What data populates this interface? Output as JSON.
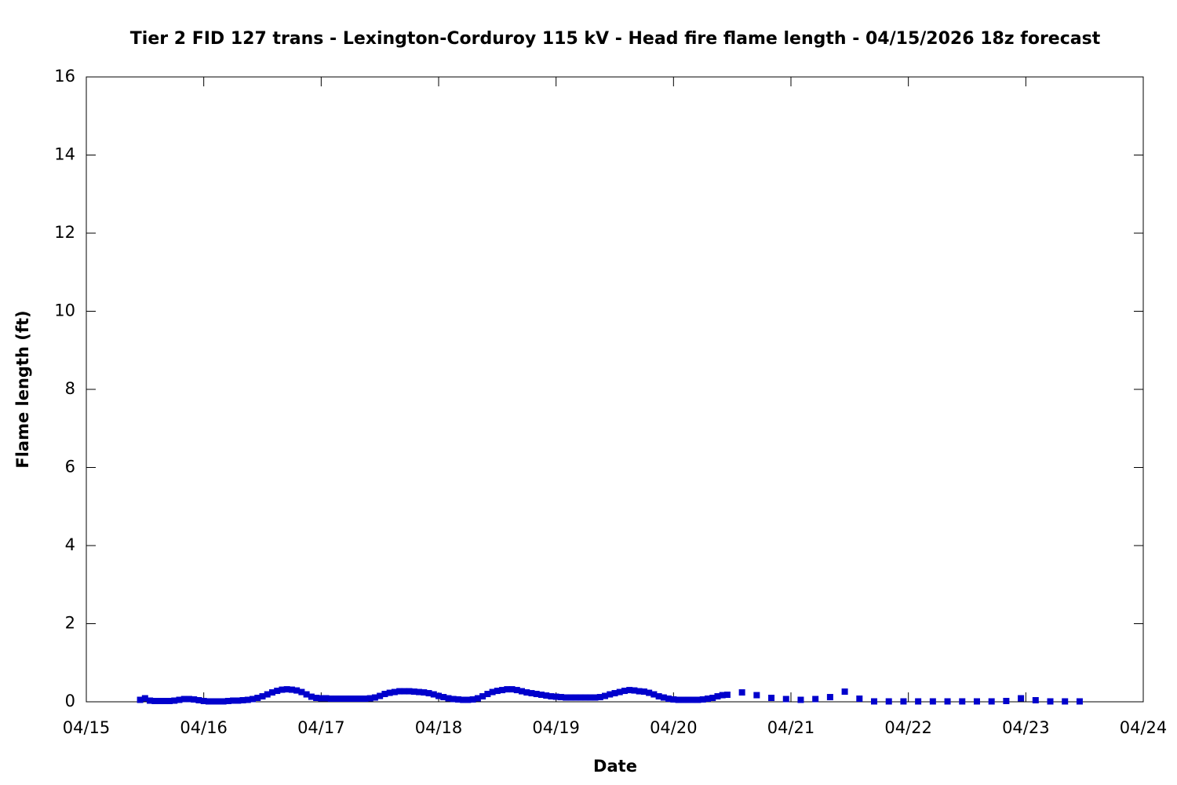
{
  "chart_data": {
    "type": "scatter",
    "title": "Tier 2 FID 127 trans - Lexington-Corduroy 115 kV - Head fire flame length - 04/15/2026 18z forecast",
    "xlabel": "Date",
    "ylabel": "Flame length (ft)",
    "xlim": [
      0,
      216
    ],
    "ylim": [
      0,
      16
    ],
    "xticks": [
      {
        "value": 0,
        "label": "04/15"
      },
      {
        "value": 24,
        "label": "04/16"
      },
      {
        "value": 48,
        "label": "04/17"
      },
      {
        "value": 72,
        "label": "04/18"
      },
      {
        "value": 96,
        "label": "04/19"
      },
      {
        "value": 120,
        "label": "04/20"
      },
      {
        "value": 144,
        "label": "04/21"
      },
      {
        "value": 168,
        "label": "04/22"
      },
      {
        "value": 192,
        "label": "04/23"
      },
      {
        "value": 216,
        "label": "04/24"
      }
    ],
    "yticks": [
      0,
      2,
      4,
      6,
      8,
      10,
      12,
      14,
      16
    ],
    "series": [
      {
        "color": "#0000cc",
        "x": [
          11,
          12,
          13,
          14,
          15,
          16,
          17,
          18,
          19,
          20,
          21,
          22,
          23,
          24,
          25,
          26,
          27,
          28,
          29,
          30,
          31,
          32,
          33,
          34,
          35,
          36,
          37,
          38,
          39,
          40,
          41,
          42,
          43,
          44,
          45,
          46,
          47,
          48,
          49,
          50,
          51,
          52,
          53,
          54,
          55,
          56,
          57,
          58,
          59,
          60,
          61,
          62,
          63,
          64,
          65,
          66,
          67,
          68,
          69,
          70,
          71,
          72,
          73,
          74,
          75,
          76,
          77,
          78,
          79,
          80,
          81,
          82,
          83,
          84,
          85,
          86,
          87,
          88,
          89,
          90,
          91,
          92,
          93,
          94,
          95,
          96,
          97,
          98,
          99,
          100,
          101,
          102,
          103,
          104,
          105,
          106,
          107,
          108,
          109,
          110,
          111,
          112,
          113,
          114,
          115,
          116,
          117,
          118,
          119,
          120,
          121,
          122,
          123,
          124,
          125,
          126,
          127,
          128,
          129,
          130,
          131,
          134,
          137,
          140,
          143,
          146,
          149,
          152,
          155,
          158,
          161,
          164,
          167,
          170,
          173,
          176,
          179,
          182,
          185,
          188,
          191,
          194,
          197,
          200,
          203
        ],
        "values": [
          0.05,
          0.09,
          0.03,
          0.02,
          0.02,
          0.02,
          0.02,
          0.03,
          0.05,
          0.07,
          0.07,
          0.06,
          0.04,
          0.02,
          0.01,
          0.01,
          0.01,
          0.01,
          0.02,
          0.03,
          0.03,
          0.04,
          0.05,
          0.07,
          0.1,
          0.14,
          0.19,
          0.24,
          0.28,
          0.31,
          0.32,
          0.31,
          0.29,
          0.25,
          0.19,
          0.13,
          0.1,
          0.09,
          0.09,
          0.08,
          0.08,
          0.08,
          0.08,
          0.08,
          0.08,
          0.08,
          0.08,
          0.09,
          0.11,
          0.15,
          0.2,
          0.23,
          0.25,
          0.27,
          0.27,
          0.27,
          0.26,
          0.25,
          0.24,
          0.22,
          0.19,
          0.15,
          0.12,
          0.09,
          0.07,
          0.06,
          0.05,
          0.05,
          0.06,
          0.09,
          0.14,
          0.2,
          0.25,
          0.28,
          0.3,
          0.32,
          0.32,
          0.3,
          0.27,
          0.24,
          0.22,
          0.2,
          0.18,
          0.16,
          0.14,
          0.13,
          0.12,
          0.11,
          0.11,
          0.11,
          0.11,
          0.11,
          0.11,
          0.11,
          0.12,
          0.15,
          0.19,
          0.22,
          0.25,
          0.28,
          0.3,
          0.29,
          0.27,
          0.26,
          0.23,
          0.19,
          0.14,
          0.11,
          0.08,
          0.06,
          0.05,
          0.05,
          0.05,
          0.05,
          0.05,
          0.06,
          0.08,
          0.1,
          0.14,
          0.17,
          0.18,
          0.24,
          0.17,
          0.1,
          0.07,
          0.05,
          0.07,
          0.12,
          0.26,
          0.08,
          0.01,
          0.01,
          0.01,
          0.01,
          0.01,
          0.01,
          0.01,
          0.01,
          0.01,
          0.02,
          0.09,
          0.04,
          0.01,
          0.01,
          0.01
        ]
      }
    ]
  }
}
